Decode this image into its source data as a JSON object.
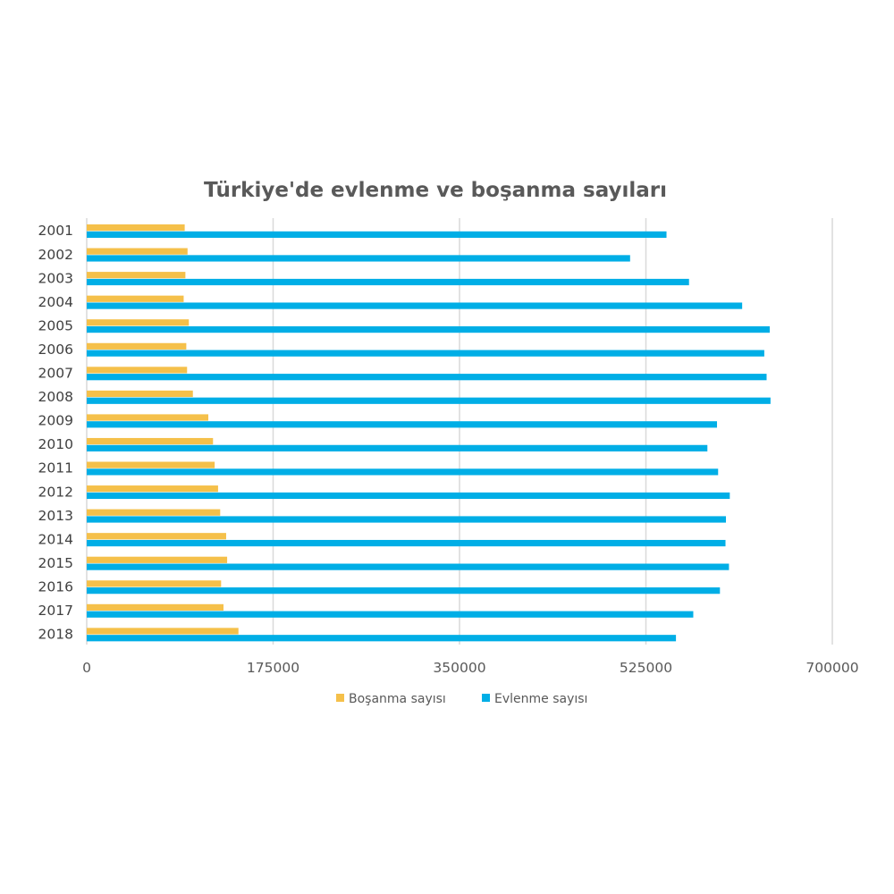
{
  "chart_data": {
    "type": "bar",
    "orientation": "horizontal",
    "title": "Türkiye'de evlenme ve boşanma sayıları",
    "xlabel": "",
    "ylabel": "",
    "categories": [
      "2001",
      "2002",
      "2003",
      "2004",
      "2005",
      "2006",
      "2007",
      "2008",
      "2009",
      "2010",
      "2011",
      "2012",
      "2013",
      "2014",
      "2015",
      "2016",
      "2017",
      "2018"
    ],
    "series": [
      {
        "name": "Boşanma sayısı",
        "color": "#f5c04a",
        "values": [
          91994,
          94669,
          92637,
          91022,
          95895,
          93489,
          94219,
          99663,
          114162,
          118568,
          120117,
          123325,
          125305,
          130913,
          131830,
          126164,
          128411,
          142448
        ]
      },
      {
        "name": "Evlenme sayısı",
        "color": "#00aee6",
        "values": [
          544322,
          510155,
          565468,
          615357,
          641241,
          636121,
          638311,
          641973,
          591742,
          582715,
          592775,
          603751,
          600138,
          599704,
          602982,
          594493,
          569459,
          553202
        ]
      }
    ],
    "xlim": [
      0,
      700000
    ],
    "xticks": [
      "0",
      "175000",
      "350000",
      "525000",
      "700000"
    ],
    "grid": true,
    "legend_position": "bottom"
  }
}
